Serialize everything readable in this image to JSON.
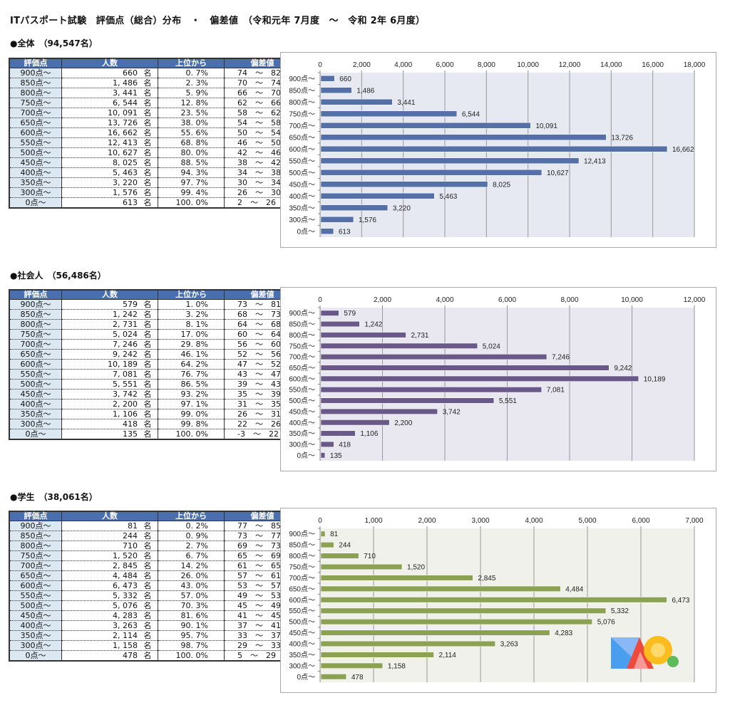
{
  "title": "ITパスポート試験　評価点（総合）分布　・　偏差値　（令和元年 7月度　～　令和 2年 6月度）",
  "table_headers": [
    "評価点",
    "人数",
    "上位から",
    "偏差値"
  ],
  "unit": "名",
  "sections": [
    {
      "heading": "●全体　（94,547名）",
      "bar_color": "#5470a6",
      "plot_bg": "#e7e9f2",
      "rows": [
        {
          "score": "900点～",
          "count": "660",
          "rank": "0.7%",
          "dev": "74 ～ 82"
        },
        {
          "score": "850点～",
          "count": "1,486",
          "rank": "2.3%",
          "dev": "70 ～ 74"
        },
        {
          "score": "800点～",
          "count": "3,441",
          "rank": "5.9%",
          "dev": "66 ～ 70"
        },
        {
          "score": "750点～",
          "count": "6,544",
          "rank": "12.8%",
          "dev": "62 ～ 66"
        },
        {
          "score": "700点～",
          "count": "10,091",
          "rank": "23.5%",
          "dev": "58 ～ 62"
        },
        {
          "score": "650点～",
          "count": "13,726",
          "rank": "38.0%",
          "dev": "54 ～ 58"
        },
        {
          "score": "600点～",
          "count": "16,662",
          "rank": "55.6%",
          "dev": "50 ～ 54"
        },
        {
          "score": "550点～",
          "count": "12,413",
          "rank": "68.8%",
          "dev": "46 ～ 50"
        },
        {
          "score": "500点～",
          "count": "10,627",
          "rank": "80.0%",
          "dev": "42 ～ 46"
        },
        {
          "score": "450点～",
          "count": "8,025",
          "rank": "88.5%",
          "dev": "38 ～ 42"
        },
        {
          "score": "400点～",
          "count": "5,463",
          "rank": "94.3%",
          "dev": "34 ～ 38"
        },
        {
          "score": "350点～",
          "count": "3,220",
          "rank": "97.7%",
          "dev": "30 ～ 34"
        },
        {
          "score": "300点～",
          "count": "1,576",
          "rank": "99.4%",
          "dev": "26 ～ 30"
        },
        {
          "score": "0点～",
          "count": "613",
          "rank": "100.0%",
          "dev": "2 ～ 26"
        }
      ]
    },
    {
      "heading": "●社会人　（56,486名）",
      "bar_color": "#685989",
      "plot_bg": "#e9e7ef",
      "rows": [
        {
          "score": "900点～",
          "count": "579",
          "rank": "1.0%",
          "dev": "73 ～ 81"
        },
        {
          "score": "850点～",
          "count": "1,242",
          "rank": "3.2%",
          "dev": "68 ～ 73"
        },
        {
          "score": "800点～",
          "count": "2,731",
          "rank": "8.1%",
          "dev": "64 ～ 68"
        },
        {
          "score": "750点～",
          "count": "5,024",
          "rank": "17.0%",
          "dev": "60 ～ 64"
        },
        {
          "score": "700点～",
          "count": "7,246",
          "rank": "29.8%",
          "dev": "56 ～ 60"
        },
        {
          "score": "650点～",
          "count": "9,242",
          "rank": "46.1%",
          "dev": "52 ～ 56"
        },
        {
          "score": "600点～",
          "count": "10,189",
          "rank": "64.2%",
          "dev": "47 ～ 52"
        },
        {
          "score": "550点～",
          "count": "7,081",
          "rank": "76.7%",
          "dev": "43 ～ 47"
        },
        {
          "score": "500点～",
          "count": "5,551",
          "rank": "86.5%",
          "dev": "39 ～ 43"
        },
        {
          "score": "450点～",
          "count": "3,742",
          "rank": "93.2%",
          "dev": "35 ～ 39"
        },
        {
          "score": "400点～",
          "count": "2,200",
          "rank": "97.1%",
          "dev": "31 ～ 35"
        },
        {
          "score": "350点～",
          "count": "1,106",
          "rank": "99.0%",
          "dev": "26 ～ 31"
        },
        {
          "score": "300点～",
          "count": "418",
          "rank": "99.8%",
          "dev": "22 ～ 26"
        },
        {
          "score": "0点～",
          "count": "135",
          "rank": "100.0%",
          "dev": "-3 ～ 22"
        }
      ]
    },
    {
      "heading": "●学生　（38,061名）",
      "bar_color": "#8ca252",
      "plot_bg": "#eff1ea",
      "rows": [
        {
          "score": "900点～",
          "count": "81",
          "rank": "0.2%",
          "dev": "77 ～ 85"
        },
        {
          "score": "850点～",
          "count": "244",
          "rank": "0.9%",
          "dev": "73 ～ 77"
        },
        {
          "score": "800点～",
          "count": "710",
          "rank": "2.7%",
          "dev": "69 ～ 73"
        },
        {
          "score": "750点～",
          "count": "1,520",
          "rank": "6.7%",
          "dev": "65 ～ 69"
        },
        {
          "score": "700点～",
          "count": "2,845",
          "rank": "14.2%",
          "dev": "61 ～ 65"
        },
        {
          "score": "650点～",
          "count": "4,484",
          "rank": "26.0%",
          "dev": "57 ～ 61"
        },
        {
          "score": "600点～",
          "count": "6,473",
          "rank": "43.0%",
          "dev": "53 ～ 57"
        },
        {
          "score": "550点～",
          "count": "5,332",
          "rank": "57.0%",
          "dev": "49 ～ 53"
        },
        {
          "score": "500点～",
          "count": "5,076",
          "rank": "70.3%",
          "dev": "45 ～ 49"
        },
        {
          "score": "450点～",
          "count": "4,283",
          "rank": "81.6%",
          "dev": "41 ～ 45"
        },
        {
          "score": "400点～",
          "count": "3,263",
          "rank": "90.1%",
          "dev": "37 ～ 41"
        },
        {
          "score": "350点～",
          "count": "2,114",
          "rank": "95.7%",
          "dev": "33 ～ 37"
        },
        {
          "score": "300点～",
          "count": "1,158",
          "rank": "98.7%",
          "dev": "29 ～ 33"
        },
        {
          "score": "0点～",
          "count": "478",
          "rank": "100.0%",
          "dev": "5 ～ 29"
        }
      ]
    }
  ],
  "chart_data": [
    {
      "type": "bar",
      "orientation": "horizontal",
      "title": "",
      "xlabel": "",
      "ylabel": "",
      "categories": [
        "900点～",
        "850点～",
        "800点～",
        "750点～",
        "700点～",
        "650点～",
        "600点～",
        "550点～",
        "500点～",
        "450点～",
        "400点～",
        "350点～",
        "300点～",
        "0点～"
      ],
      "values": [
        660,
        1486,
        3441,
        6544,
        10091,
        13726,
        16662,
        12413,
        10627,
        8025,
        5463,
        3220,
        1576,
        613
      ],
      "data_labels": [
        "660",
        "1,486",
        "3,441",
        "6,544",
        "10,091",
        "13,726",
        "16,662",
        "12,413",
        "10,627",
        "8,025",
        "5,463",
        "3,220",
        "1,576",
        "613"
      ],
      "xlim": [
        0,
        18000
      ],
      "xticks": [
        0,
        2000,
        4000,
        6000,
        8000,
        10000,
        12000,
        14000,
        16000,
        18000
      ],
      "xtick_labels": [
        "0",
        "2,000",
        "4,000",
        "6,000",
        "8,000",
        "10,000",
        "12,000",
        "14,000",
        "16,000",
        "18,000"
      ],
      "grid": "vertical",
      "axis_position": "top",
      "legend": "none"
    },
    {
      "type": "bar",
      "orientation": "horizontal",
      "title": "",
      "xlabel": "",
      "ylabel": "",
      "categories": [
        "900点～",
        "850点～",
        "800点～",
        "750点～",
        "700点～",
        "650点～",
        "600点～",
        "550点～",
        "500点～",
        "450点～",
        "400点～",
        "350点～",
        "300点～",
        "0点～"
      ],
      "values": [
        579,
        1242,
        2731,
        5024,
        7246,
        9242,
        10189,
        7081,
        5551,
        3742,
        2200,
        1106,
        418,
        135
      ],
      "data_labels": [
        "579",
        "1,242",
        "2,731",
        "5,024",
        "7,246",
        "9,242",
        "10,189",
        "7,081",
        "5,551",
        "3,742",
        "2,200",
        "1,106",
        "418",
        "135"
      ],
      "xlim": [
        0,
        12000
      ],
      "xticks": [
        0,
        2000,
        4000,
        6000,
        8000,
        10000,
        12000
      ],
      "xtick_labels": [
        "0",
        "2,000",
        "4,000",
        "6,000",
        "8,000",
        "10,000",
        "12,000"
      ],
      "grid": "vertical",
      "axis_position": "top",
      "legend": "none"
    },
    {
      "type": "bar",
      "orientation": "horizontal",
      "title": "",
      "xlabel": "",
      "ylabel": "",
      "categories": [
        "900点～",
        "850点～",
        "800点～",
        "750点～",
        "700点～",
        "650点～",
        "600点～",
        "550点～",
        "500点～",
        "450点～",
        "400点～",
        "350点～",
        "300点～",
        "0点～"
      ],
      "values": [
        81,
        244,
        710,
        1520,
        2845,
        4484,
        6473,
        5332,
        5076,
        4283,
        3263,
        2114,
        1158,
        478
      ],
      "data_labels": [
        "81",
        "244",
        "710",
        "1,520",
        "2,845",
        "4,484",
        "6,473",
        "5,332",
        "5,076",
        "4,283",
        "3,263",
        "2,114",
        "1,158",
        "478"
      ],
      "xlim": [
        0,
        7000
      ],
      "xticks": [
        0,
        1000,
        2000,
        3000,
        4000,
        5000,
        6000,
        7000
      ],
      "xtick_labels": [
        "0",
        "1,000",
        "2,000",
        "3,000",
        "4,000",
        "5,000",
        "6,000",
        "7,000"
      ],
      "grid": "vertical",
      "axis_position": "top",
      "legend": "none"
    }
  ]
}
